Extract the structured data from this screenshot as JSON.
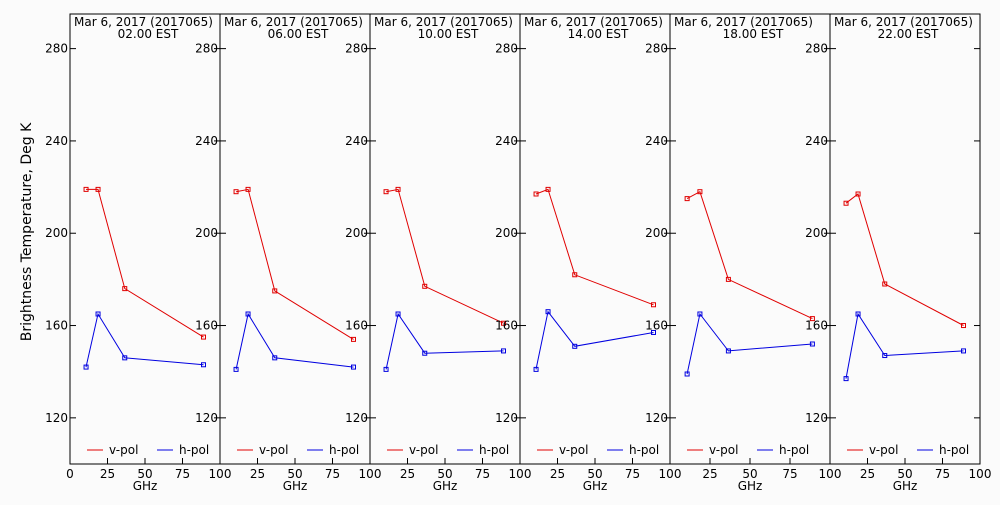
{
  "y_axis_label": "Brightness Temperature, Deg K",
  "chart_data": [
    {
      "type": "line",
      "title": "Mar  6, 2017 (2017065)",
      "subtitle": "02.00 EST",
      "xlabel": "GHz",
      "xlim": [
        0,
        100
      ],
      "ylim": [
        100,
        295
      ],
      "x_ticks": [
        0,
        25,
        50,
        75,
        100
      ],
      "x_tick_labels": [
        "0",
        "25",
        "50",
        "75",
        "100"
      ],
      "y_ticks": [
        120,
        160,
        200,
        240,
        280
      ],
      "y_tick_labels": [
        "120",
        "160",
        "200",
        "240",
        "280"
      ],
      "series": [
        {
          "name": "v-pol",
          "color": "#e00000",
          "x": [
            10.7,
            18.7,
            36.5,
            89.0
          ],
          "y": [
            219,
            219,
            176,
            155
          ]
        },
        {
          "name": "h-pol",
          "color": "#0000e0",
          "x": [
            10.7,
            18.7,
            36.5,
            89.0
          ],
          "y": [
            142,
            165,
            146,
            143
          ]
        }
      ]
    },
    {
      "type": "line",
      "title": "Mar  6, 2017 (2017065)",
      "subtitle": "06.00 EST",
      "xlabel": "GHz",
      "xlim": [
        0,
        100
      ],
      "ylim": [
        100,
        295
      ],
      "x_ticks": [
        0,
        25,
        50,
        75,
        100
      ],
      "x_tick_labels": [
        "",
        "25",
        "50",
        "75",
        "100"
      ],
      "y_ticks": [
        120,
        160,
        200,
        240,
        280
      ],
      "y_tick_labels": [
        "120",
        "160",
        "200",
        "240",
        "280"
      ],
      "series": [
        {
          "name": "v-pol",
          "color": "#e00000",
          "x": [
            10.7,
            18.7,
            36.5,
            89.0
          ],
          "y": [
            218,
            219,
            175,
            154
          ]
        },
        {
          "name": "h-pol",
          "color": "#0000e0",
          "x": [
            10.7,
            18.7,
            36.5,
            89.0
          ],
          "y": [
            141,
            165,
            146,
            142
          ]
        }
      ]
    },
    {
      "type": "line",
      "title": "Mar  6, 2017 (2017065)",
      "subtitle": "10.00 EST",
      "xlabel": "GHz",
      "xlim": [
        0,
        100
      ],
      "ylim": [
        100,
        295
      ],
      "x_ticks": [
        0,
        25,
        50,
        75,
        100
      ],
      "x_tick_labels": [
        "",
        "25",
        "50",
        "75",
        "100"
      ],
      "y_ticks": [
        120,
        160,
        200,
        240,
        280
      ],
      "y_tick_labels": [
        "120",
        "160",
        "200",
        "240",
        "280"
      ],
      "series": [
        {
          "name": "v-pol",
          "color": "#e00000",
          "x": [
            10.7,
            18.7,
            36.5,
            89.0
          ],
          "y": [
            218,
            219,
            177,
            161
          ]
        },
        {
          "name": "h-pol",
          "color": "#0000e0",
          "x": [
            10.7,
            18.7,
            36.5,
            89.0
          ],
          "y": [
            141,
            165,
            148,
            149
          ]
        }
      ]
    },
    {
      "type": "line",
      "title": "Mar  6, 2017 (2017065)",
      "subtitle": "14.00 EST",
      "xlabel": "GHz",
      "xlim": [
        0,
        100
      ],
      "ylim": [
        100,
        295
      ],
      "x_ticks": [
        0,
        25,
        50,
        75,
        100
      ],
      "x_tick_labels": [
        "",
        "25",
        "50",
        "75",
        "100"
      ],
      "y_ticks": [
        120,
        160,
        200,
        240,
        280
      ],
      "y_tick_labels": [
        "120",
        "160",
        "200",
        "240",
        "280"
      ],
      "series": [
        {
          "name": "v-pol",
          "color": "#e00000",
          "x": [
            10.7,
            18.7,
            36.5,
            89.0
          ],
          "y": [
            217,
            219,
            182,
            169
          ]
        },
        {
          "name": "h-pol",
          "color": "#0000e0",
          "x": [
            10.7,
            18.7,
            36.5,
            89.0
          ],
          "y": [
            141,
            166,
            151,
            157
          ]
        }
      ]
    },
    {
      "type": "line",
      "title": "Mar  6, 2017 (2017065)",
      "subtitle": "18.00 EST",
      "xlabel": "GHz",
      "xlim": [
        0,
        100
      ],
      "ylim": [
        100,
        295
      ],
      "x_ticks": [
        0,
        25,
        50,
        75,
        100
      ],
      "x_tick_labels": [
        "",
        "25",
        "50",
        "75",
        "100"
      ],
      "y_ticks": [
        120,
        160,
        200,
        240,
        280
      ],
      "y_tick_labels": [
        "120",
        "160",
        "200",
        "240",
        "280"
      ],
      "series": [
        {
          "name": "v-pol",
          "color": "#e00000",
          "x": [
            10.7,
            18.7,
            36.5,
            89.0
          ],
          "y": [
            215,
            218,
            180,
            163
          ]
        },
        {
          "name": "h-pol",
          "color": "#0000e0",
          "x": [
            10.7,
            18.7,
            36.5,
            89.0
          ],
          "y": [
            139,
            165,
            149,
            152
          ]
        }
      ]
    },
    {
      "type": "line",
      "title": "Mar  6, 2017 (2017065)",
      "subtitle": "22.00 EST",
      "xlabel": "GHz",
      "xlim": [
        0,
        100
      ],
      "ylim": [
        100,
        295
      ],
      "x_ticks": [
        0,
        25,
        50,
        75,
        100
      ],
      "x_tick_labels": [
        "",
        "25",
        "50",
        "75",
        "100"
      ],
      "y_ticks": [
        120,
        160,
        200,
        240,
        280
      ],
      "y_tick_labels": [
        "120",
        "160",
        "200",
        "240",
        "280"
      ],
      "series": [
        {
          "name": "v-pol",
          "color": "#e00000",
          "x": [
            10.7,
            18.7,
            36.5,
            89.0
          ],
          "y": [
            213,
            217,
            178,
            160
          ]
        },
        {
          "name": "h-pol",
          "color": "#0000e0",
          "x": [
            10.7,
            18.7,
            36.5,
            89.0
          ],
          "y": [
            137,
            165,
            147,
            149
          ]
        }
      ]
    }
  ]
}
